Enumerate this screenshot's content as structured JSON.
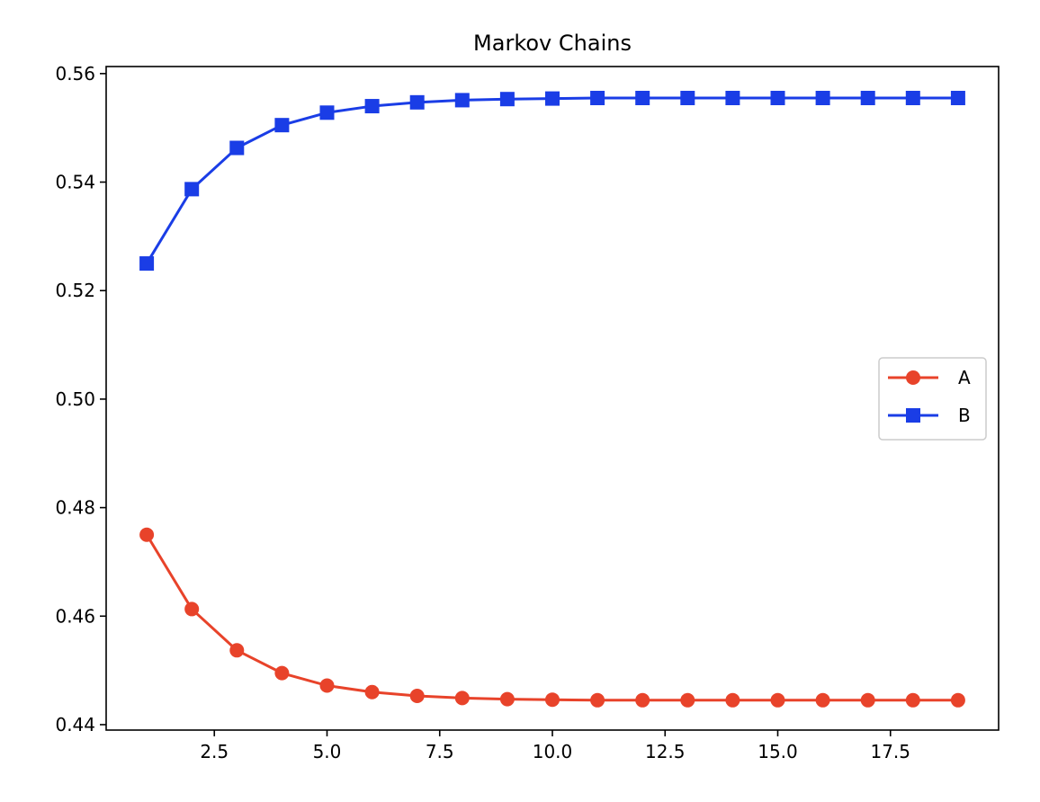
{
  "chart_data": {
    "type": "line",
    "title": "Markov Chains",
    "xlabel": "",
    "ylabel": "",
    "x": [
      1,
      2,
      3,
      4,
      5,
      6,
      7,
      8,
      9,
      10,
      11,
      12,
      13,
      14,
      15,
      16,
      17,
      18,
      19
    ],
    "xlim": [
      0.1,
      19.9
    ],
    "ylim": [
      0.439,
      0.5613
    ],
    "xticks": [
      2.5,
      5.0,
      7.5,
      10.0,
      12.5,
      15.0,
      17.5
    ],
    "xtick_labels": [
      "2.5",
      "5.0",
      "7.5",
      "10.0",
      "12.5",
      "15.0",
      "17.5"
    ],
    "yticks": [
      0.44,
      0.46,
      0.48,
      0.5,
      0.52,
      0.54,
      0.56
    ],
    "ytick_labels": [
      "0.44",
      "0.46",
      "0.48",
      "0.50",
      "0.52",
      "0.54",
      "0.56"
    ],
    "grid": false,
    "legend_position": "center-right",
    "series": [
      {
        "name": "A",
        "color": "#e8432a",
        "marker": "circle",
        "values": [
          0.475,
          0.4613,
          0.4537,
          0.4495,
          0.4472,
          0.446,
          0.4453,
          0.4449,
          0.4447,
          0.4446,
          0.4445,
          0.4445,
          0.4445,
          0.4445,
          0.4445,
          0.4445,
          0.4445,
          0.4445,
          0.4445
        ]
      },
      {
        "name": "B",
        "color": "#1a3de6",
        "marker": "square",
        "values": [
          0.525,
          0.5387,
          0.5463,
          0.5505,
          0.5528,
          0.554,
          0.5547,
          0.5551,
          0.5553,
          0.5554,
          0.5555,
          0.5555,
          0.5555,
          0.5555,
          0.5555,
          0.5555,
          0.5555,
          0.5555,
          0.5555
        ]
      }
    ]
  }
}
